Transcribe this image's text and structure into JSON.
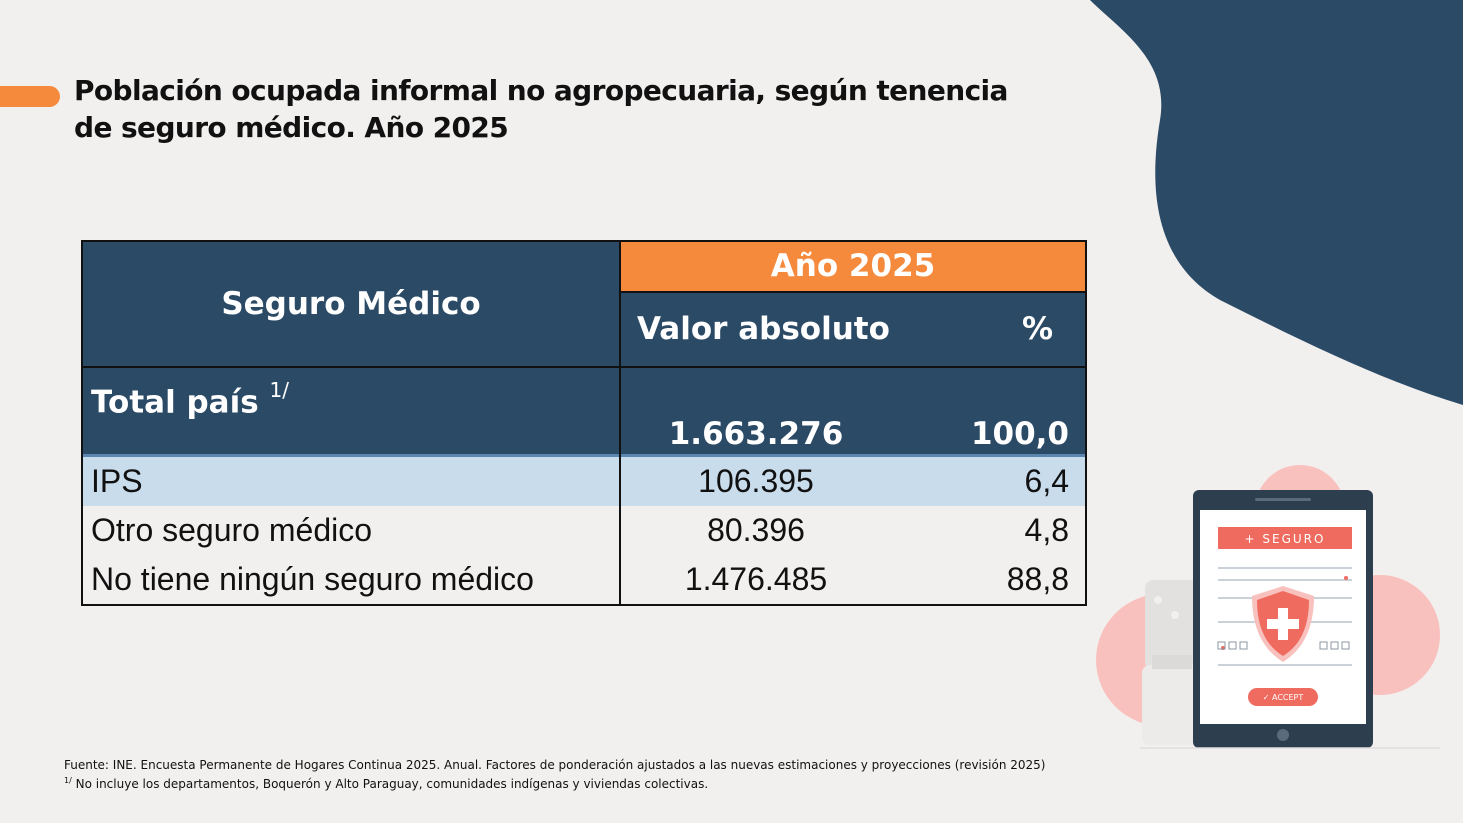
{
  "title": {
    "line1": "Población ocupada informal no agropecuaria, según tenencia",
    "line2": "de seguro médico. Año  2025"
  },
  "table": {
    "header_category": "Seguro Médico",
    "header_year": "Año 2025",
    "header_abs": "Valor absoluto",
    "header_pct": "%",
    "total": {
      "label": "Total país",
      "note": "1/",
      "abs": "1.663.276",
      "pct": "100,0"
    },
    "rows": [
      {
        "label": "IPS",
        "abs": "106.395",
        "pct": "6,4"
      },
      {
        "label": "Otro seguro médico",
        "abs": "80.396",
        "pct": "4,8"
      },
      {
        "label": "No tiene ningún seguro médico",
        "abs": "1.476.485",
        "pct": "88,8"
      }
    ]
  },
  "footnote": {
    "source": "Fuente: INE. Encuesta Permanente de Hogares Continua 2025. Anual. Factores de ponderación ajustados a las nuevas estimaciones y proyecciones (revisión 2025)",
    "note_mark": "1/",
    "note": " No incluye los departamentos, Boquerón y Alto Paraguay, comunidades indígenas y viviendas colectivas."
  },
  "illustration": {
    "banner": "+    SEGURO",
    "button": "✓  ACCEPT",
    "icon": "shield-cross-icon"
  },
  "colors": {
    "navy": "#2b4a66",
    "orange": "#f58a3c",
    "light_blue": "#c9dcec",
    "coral": "#ef6b5f"
  }
}
